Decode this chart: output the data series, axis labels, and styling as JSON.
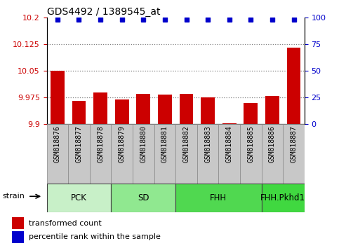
{
  "title": "GDS4492 / 1389545_at",
  "samples": [
    "GSM818876",
    "GSM818877",
    "GSM818878",
    "GSM818879",
    "GSM818880",
    "GSM818881",
    "GSM818882",
    "GSM818883",
    "GSM818884",
    "GSM818885",
    "GSM818886",
    "GSM818887"
  ],
  "transformed_counts": [
    10.05,
    9.965,
    9.988,
    9.968,
    9.985,
    9.983,
    9.985,
    9.975,
    9.902,
    9.96,
    9.978,
    10.115
  ],
  "percentile_ranks": [
    98,
    98,
    98,
    98,
    98,
    98,
    98,
    98,
    98,
    98,
    98,
    98
  ],
  "ylim_left": [
    9.9,
    10.2
  ],
  "ylim_right": [
    0,
    100
  ],
  "yticks_left": [
    9.9,
    9.975,
    10.05,
    10.125,
    10.2
  ],
  "yticks_right": [
    0,
    25,
    50,
    75,
    100
  ],
  "hlines": [
    9.975,
    10.05,
    10.125
  ],
  "group_defs": [
    {
      "label": "PCK",
      "start": 0,
      "end": 2,
      "color": "#c8f0c8"
    },
    {
      "label": "SD",
      "start": 3,
      "end": 5,
      "color": "#90e890"
    },
    {
      "label": "FHH",
      "start": 6,
      "end": 9,
      "color": "#50d850"
    },
    {
      "label": "FHH.Pkhd1",
      "start": 10,
      "end": 11,
      "color": "#40d840"
    }
  ],
  "bar_color": "#cc0000",
  "dot_color": "#0000cc",
  "ylabel_left_color": "#cc0000",
  "ylabel_right_color": "#0000cc",
  "grid_color": "#808080",
  "tick_bg_color": "#c8c8c8",
  "tick_border_color": "#888888"
}
